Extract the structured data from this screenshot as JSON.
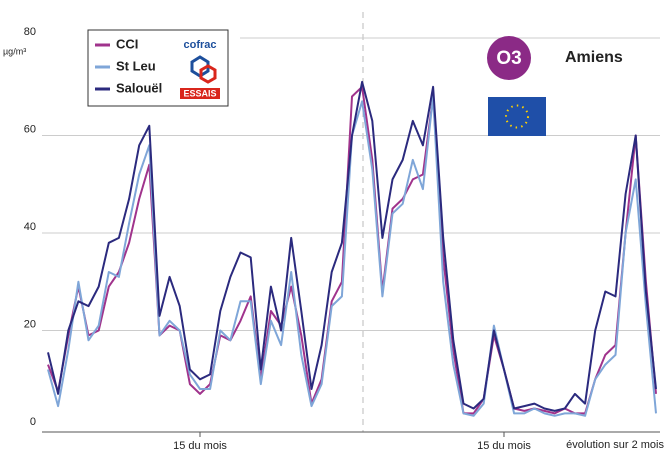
{
  "chart_data": {
    "type": "line",
    "badge": "O3",
    "subtitle": "Amiens",
    "y_unit": "µg/m³",
    "note": "évolution sur 2 mois",
    "logo": {
      "name": "cofrac",
      "label": "ESSAIS"
    },
    "categories": [
      null,
      null,
      null,
      null,
      null,
      null,
      null,
      null,
      null,
      null,
      null,
      null,
      null,
      null,
      null,
      "15 du mois",
      null,
      null,
      null,
      null,
      null,
      null,
      null,
      null,
      null,
      null,
      null,
      null,
      null,
      null,
      null,
      null,
      null,
      null,
      null,
      null,
      null,
      null,
      null,
      null,
      null,
      null,
      null,
      null,
      null,
      "15 du mois",
      null,
      null,
      null,
      null,
      null,
      null,
      null,
      null,
      null,
      null,
      null,
      null,
      null,
      null,
      null
    ],
    "series": [
      {
        "name": "CCI",
        "color": "#a0338c",
        "values": [
          13,
          7.5,
          19,
          29,
          19,
          20,
          29,
          32,
          38,
          47,
          54,
          19,
          21,
          20,
          9,
          7,
          9,
          19,
          18,
          22,
          27,
          10,
          24,
          21,
          29,
          19,
          5,
          10,
          26,
          30,
          68,
          70,
          55,
          28,
          45,
          47,
          51,
          52,
          68,
          35,
          16,
          3,
          3,
          6,
          19,
          12,
          4,
          3.5,
          4,
          3.5,
          3,
          4,
          3,
          3,
          10,
          15,
          17,
          40,
          60,
          30,
          7
        ]
      },
      {
        "name": "St Leu",
        "color": "#7fa6d8",
        "values": [
          12,
          4.5,
          16,
          30,
          18,
          21,
          32,
          31,
          42,
          52,
          58,
          19,
          22,
          20,
          11,
          8,
          8,
          20,
          18,
          26,
          26,
          9,
          22,
          17,
          32,
          15,
          4.5,
          9,
          25,
          27,
          60,
          67,
          53,
          27,
          44,
          46,
          55,
          49,
          68,
          30,
          13,
          3,
          2.5,
          5,
          21,
          12,
          3,
          3,
          4,
          3,
          2.5,
          3,
          3,
          2.5,
          10,
          13,
          15,
          40,
          51,
          25,
          3
        ]
      },
      {
        "name": "Salouël",
        "color": "#2b2a7e",
        "values": [
          15.5,
          7,
          20,
          26,
          25,
          29,
          38,
          39,
          47,
          58,
          62,
          23,
          31,
          25,
          12,
          10,
          11,
          24,
          31,
          36,
          35,
          12,
          29,
          20,
          39,
          24,
          8,
          17,
          32,
          38,
          60,
          71,
          63,
          39,
          51,
          55,
          63,
          58,
          70,
          39,
          18,
          5,
          4,
          6,
          20,
          12,
          4,
          4.5,
          5,
          4,
          3.5,
          4,
          7,
          5,
          20,
          28,
          27,
          48,
          60,
          28,
          8
        ]
      }
    ],
    "ylim": [
      0,
      80
    ],
    "yticks": [
      0,
      20,
      40,
      60,
      80
    ],
    "grid": true
  }
}
